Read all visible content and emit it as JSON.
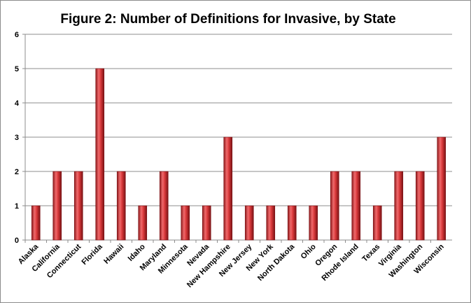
{
  "chart_data": {
    "type": "bar",
    "title": "Figure 2: Number of Definitions for Invasive, by State",
    "xlabel": "",
    "ylabel": "",
    "categories": [
      "Alaska",
      "California",
      "Connecticut",
      "Florida",
      "Hawaii",
      "Idaho",
      "Maryland",
      "Minnesota",
      "Nevada",
      "New Hampshire",
      "New Jersey",
      "New York",
      "North Dakota",
      "Ohio",
      "Oregon",
      "Rhode Island",
      "Texas",
      "Virginia",
      "Washington",
      "Wisconsin"
    ],
    "values": [
      1,
      2,
      2,
      5,
      2,
      1,
      2,
      1,
      1,
      3,
      1,
      1,
      1,
      1,
      2,
      2,
      1,
      2,
      2,
      3
    ],
    "ylim": [
      0,
      6
    ],
    "yticks": [
      "0",
      "1",
      "2",
      "3",
      "4",
      "5",
      "6"
    ],
    "grid": true,
    "legend": "none",
    "bar_color": "#c0282a"
  }
}
